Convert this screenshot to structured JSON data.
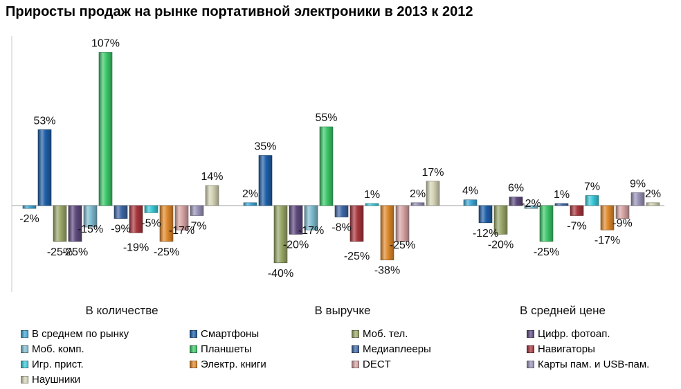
{
  "title": "Приросты продаж на рынке портативной электроники в 2013 к 2012",
  "chart_data": {
    "type": "bar",
    "categories": [
      "В количестве",
      "В выручке",
      "В средней цене"
    ],
    "series": [
      {
        "name": "В среднем по рынку",
        "color": "#3fa7d6",
        "values": [
          -2,
          2,
          4
        ],
        "labels": [
          "-2%",
          "2%",
          "4%"
        ]
      },
      {
        "name": "Смартфоны",
        "color": "#1f5fa8",
        "values": [
          53,
          35,
          -12
        ],
        "labels": [
          "53%",
          "35%",
          "-12%"
        ]
      },
      {
        "name": "Моб. тел.",
        "color": "#9aa86a",
        "values": [
          -25,
          -40,
          -20
        ],
        "labels": [
          "-25%",
          "-40%",
          "-20%"
        ]
      },
      {
        "name": "Цифр. фотоап.",
        "color": "#5e4a7e",
        "values": [
          -25,
          -20,
          6
        ],
        "labels": [
          "-25%",
          "-20%",
          "6%"
        ]
      },
      {
        "name": "Моб. комп.",
        "color": "#7fbcd0",
        "values": [
          -15,
          -17,
          -2
        ],
        "labels": [
          "-15%",
          "-17%",
          "-2%"
        ]
      },
      {
        "name": "Планшеты",
        "color": "#3cc769",
        "values": [
          107,
          55,
          -25
        ],
        "labels": [
          "107%",
          "55%",
          "-25%"
        ]
      },
      {
        "name": "Медиаплееры",
        "color": "#3f67a6",
        "values": [
          -9,
          -8,
          1
        ],
        "labels": [
          "-9%",
          "-8%",
          "1%"
        ]
      },
      {
        "name": "Навигаторы",
        "color": "#a8363d",
        "values": [
          -19,
          -25,
          -7
        ],
        "labels": [
          "-19%",
          "-25%",
          "-7%"
        ]
      },
      {
        "name": "Игр. прист.",
        "color": "#39c9d8",
        "values": [
          -5,
          1,
          7
        ],
        "labels": [
          "-5%",
          "1%",
          "7%"
        ]
      },
      {
        "name": "Электр. книги",
        "color": "#e0892b",
        "values": [
          -25,
          -38,
          -17
        ],
        "labels": [
          "-25%",
          "-38%",
          "-17%"
        ]
      },
      {
        "name": "DECT",
        "color": "#d6a3a3",
        "values": [
          -17,
          -25,
          -9
        ],
        "labels": [
          "-17%",
          "-25%",
          "-9%"
        ]
      },
      {
        "name": "Карты пам. и USB-пам.",
        "color": "#9a93b8",
        "values": [
          -7,
          2,
          9
        ],
        "labels": [
          "-7%",
          "2%",
          "9%"
        ]
      },
      {
        "name": "Наушники",
        "color": "#d4d2b4",
        "values": [
          14,
          17,
          2
        ],
        "labels": [
          "14%",
          "17%",
          "2%"
        ]
      }
    ],
    "ylim": [
      -60,
      110
    ],
    "grid": false,
    "legend_position": "bottom"
  }
}
